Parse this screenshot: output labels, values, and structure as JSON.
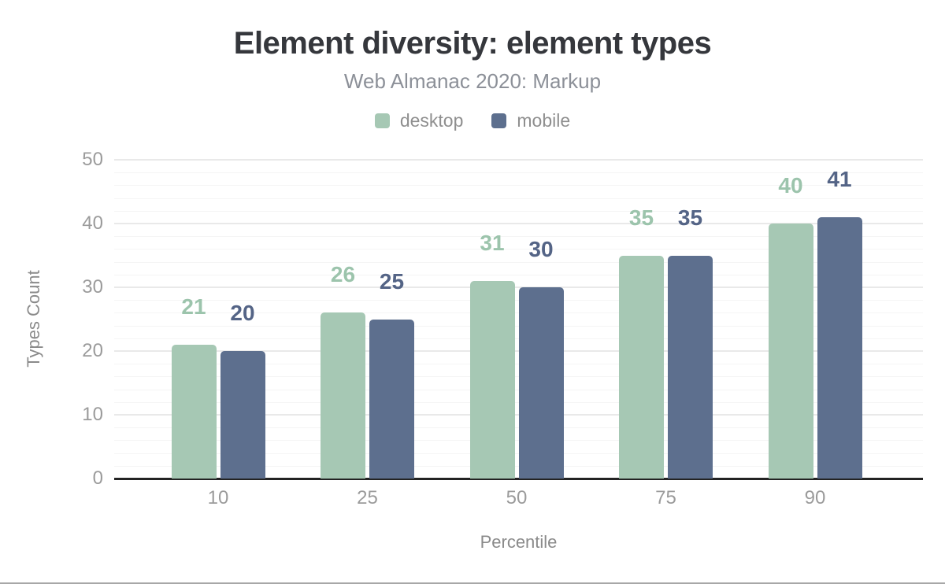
{
  "chart_data": {
    "type": "bar",
    "title": "Element diversity: element types",
    "subtitle": "Web Almanac 2020: Markup",
    "xlabel": "Percentile",
    "ylabel": "Types Count",
    "categories": [
      "10",
      "25",
      "50",
      "75",
      "90"
    ],
    "series": [
      {
        "name": "desktop",
        "color": "#a6c8b4",
        "label_color": "#9cc4ac",
        "values": [
          21,
          26,
          31,
          35,
          40
        ]
      },
      {
        "name": "mobile",
        "color": "#5d6f8e",
        "label_color": "#546486",
        "values": [
          20,
          25,
          30,
          35,
          41
        ]
      }
    ],
    "ylim": [
      0,
      50
    ],
    "y_ticks": [
      0,
      10,
      20,
      30,
      40,
      50
    ],
    "y_minor_step": 2,
    "grid": "on",
    "legend_position": "top",
    "colors": {
      "title": "#35373c",
      "subtitle": "#8c9098",
      "axis_text": "#9b9b9b",
      "axis_title": "#8a8a8a",
      "baseline": "#232323",
      "major_grid": "#e9e9e9",
      "minor_grid": "#f5f5f5"
    }
  }
}
